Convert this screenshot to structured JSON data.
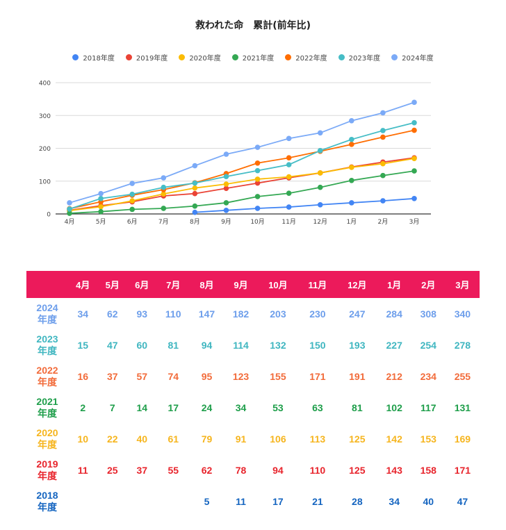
{
  "chart_data": {
    "type": "line",
    "title": "救われた命　累計(前年比)",
    "categories": [
      "4月",
      "5月",
      "6月",
      "7月",
      "8月",
      "9月",
      "10月",
      "11月",
      "12月",
      "1月",
      "2月",
      "3月"
    ],
    "ylim": [
      0,
      400
    ],
    "yticks": [
      0,
      100,
      200,
      300,
      400
    ],
    "grid": true,
    "legend_position": "top",
    "series": [
      {
        "name": "2018年度",
        "color": "#4285f4",
        "values": [
          null,
          null,
          null,
          null,
          5,
          11,
          17,
          21,
          28,
          34,
          40,
          47
        ]
      },
      {
        "name": "2019年度",
        "color": "#ea4335",
        "values": [
          11,
          25,
          37,
          55,
          62,
          78,
          94,
          110,
          125,
          143,
          158,
          171
        ]
      },
      {
        "name": "2020年度",
        "color": "#fbbc04",
        "values": [
          10,
          22,
          40,
          61,
          79,
          91,
          106,
          113,
          125,
          142,
          153,
          169
        ]
      },
      {
        "name": "2021年度",
        "color": "#34a853",
        "values": [
          2,
          7,
          14,
          17,
          24,
          34,
          53,
          63,
          81,
          102,
          117,
          131
        ]
      },
      {
        "name": "2022年度",
        "color": "#ff6d01",
        "values": [
          16,
          37,
          57,
          74,
          95,
          123,
          155,
          171,
          191,
          212,
          234,
          255
        ]
      },
      {
        "name": "2023年度",
        "color": "#46bdc6",
        "values": [
          15,
          47,
          60,
          81,
          94,
          114,
          132,
          150,
          193,
          227,
          254,
          278
        ]
      },
      {
        "name": "2024年度",
        "color": "#7baaf7",
        "values": [
          34,
          62,
          93,
          110,
          147,
          182,
          203,
          230,
          247,
          284,
          308,
          340
        ]
      }
    ]
  },
  "table": {
    "header": [
      "",
      "4月",
      "5月",
      "6月",
      "7月",
      "8月",
      "9月",
      "10月",
      "11月",
      "12月",
      "1月",
      "2月",
      "3月"
    ],
    "rows": [
      {
        "label_year": "2024",
        "label_suffix": "年度",
        "color": "#6d9eeb",
        "values": [
          "34",
          "62",
          "93",
          "110",
          "147",
          "182",
          "203",
          "230",
          "247",
          "284",
          "308",
          "340"
        ]
      },
      {
        "label_year": "2023",
        "label_suffix": "年度",
        "color": "#3fb6c0",
        "values": [
          "15",
          "47",
          "60",
          "81",
          "94",
          "114",
          "132",
          "150",
          "193",
          "227",
          "254",
          "278"
        ]
      },
      {
        "label_year": "2022",
        "label_suffix": "年度",
        "color": "#f26b3a",
        "values": [
          "16",
          "37",
          "57",
          "74",
          "95",
          "123",
          "155",
          "171",
          "191",
          "212",
          "234",
          "255"
        ]
      },
      {
        "label_year": "2021",
        "label_suffix": "年度",
        "color": "#1e9e4a",
        "values": [
          "2",
          "7",
          "14",
          "17",
          "24",
          "34",
          "53",
          "63",
          "81",
          "102",
          "117",
          "131"
        ]
      },
      {
        "label_year": "2020",
        "label_suffix": "年度",
        "color": "#f6b51e",
        "values": [
          "10",
          "22",
          "40",
          "61",
          "79",
          "91",
          "106",
          "113",
          "125",
          "142",
          "153",
          "169"
        ]
      },
      {
        "label_year": "2019",
        "label_suffix": "年度",
        "color": "#e8242c",
        "values": [
          "11",
          "25",
          "37",
          "55",
          "62",
          "78",
          "94",
          "110",
          "125",
          "143",
          "158",
          "171"
        ]
      },
      {
        "label_year": "2018",
        "label_suffix": "年度",
        "color": "#1565c0",
        "values": [
          "",
          "",
          "",
          "",
          "5",
          "11",
          "17",
          "21",
          "28",
          "34",
          "40",
          "47"
        ]
      }
    ]
  }
}
